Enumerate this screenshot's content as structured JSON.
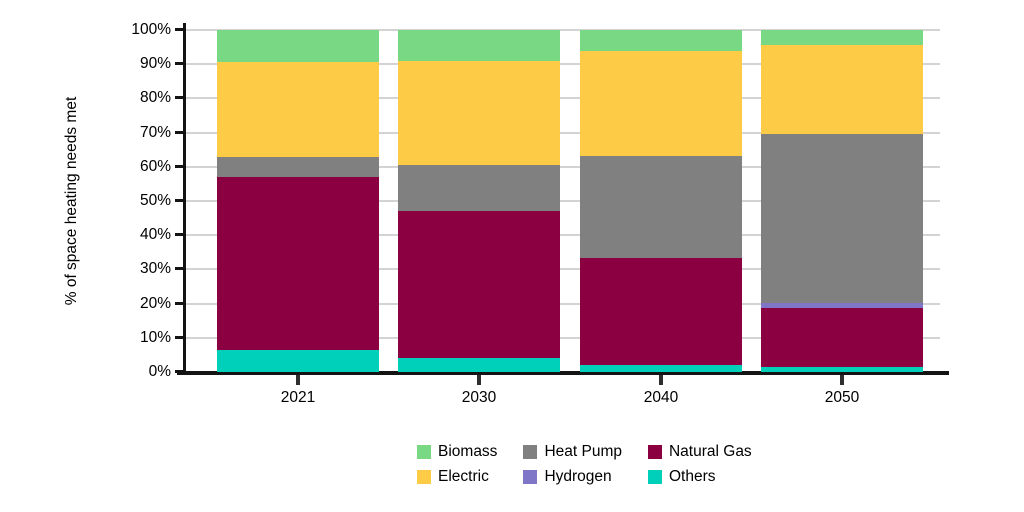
{
  "chart_data": {
    "type": "bar",
    "stacked": true,
    "title": "",
    "xlabel": "",
    "ylabel": "% of space heating needs met",
    "categories": [
      "2021",
      "2030",
      "2040",
      "2050"
    ],
    "series": [
      {
        "name": "Others",
        "color": "#00CFB9",
        "values": [
          6.5,
          4.0,
          2.0,
          1.5
        ]
      },
      {
        "name": "Natural Gas",
        "color": "#8B0040",
        "values": [
          50.5,
          43.0,
          31.3,
          17.2
        ]
      },
      {
        "name": "Hydrogen",
        "color": "#7F76C8",
        "values": [
          0,
          0,
          0,
          1.6
        ]
      },
      {
        "name": "Heat Pump",
        "color": "#808080",
        "values": [
          6.0,
          13.5,
          30.0,
          49.4
        ]
      },
      {
        "name": "Electric",
        "color": "#FECB47",
        "values": [
          27.5,
          30.5,
          30.7,
          25.8
        ]
      },
      {
        "name": "Biomass",
        "color": "#79D883",
        "values": [
          9.5,
          9.0,
          6.0,
          4.5
        ]
      }
    ],
    "ylim": [
      0,
      100
    ],
    "ytick_values": [
      0,
      10,
      20,
      30,
      40,
      50,
      60,
      70,
      80,
      90,
      100
    ],
    "ytick_labels": [
      "0%",
      "10%",
      "20%",
      "30%",
      "40%",
      "50%",
      "60%",
      "70%",
      "80%",
      "90%",
      "100%"
    ],
    "grid": "horizontal",
    "legend_position": "bottom",
    "legend_rows": [
      [
        "Biomass",
        "Heat Pump",
        "Natural Gas"
      ],
      [
        "Electric",
        "Hydrogen",
        "Others"
      ]
    ]
  },
  "colors": {
    "background": "#FFFFFF",
    "grid": "#D3D3D3",
    "axis": "#141414",
    "tick_text": "#000000"
  }
}
